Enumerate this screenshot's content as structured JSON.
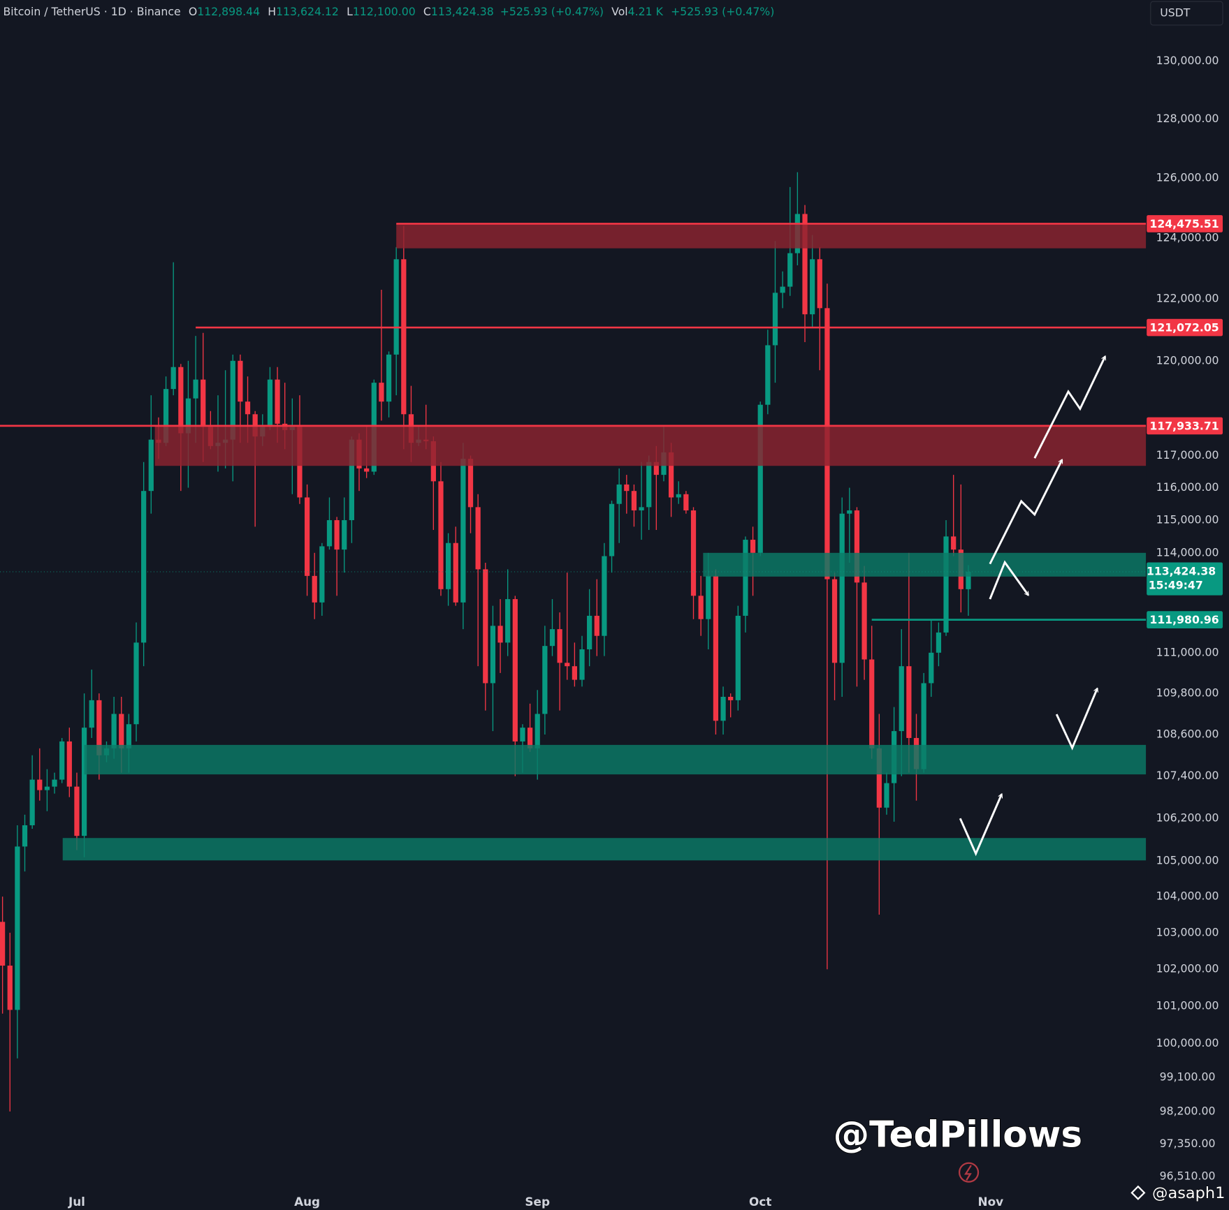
{
  "chart_data": {
    "type": "candlestick",
    "title": "Bitcoin / TetherUS · 1D · Binance",
    "ohlc_header": {
      "open_label": "O",
      "open": "112,898.44",
      "high_label": "H",
      "high": "113,624.12",
      "low_label": "L",
      "low": "112,100.00",
      "close_label": "C",
      "close": "113,424.38",
      "change": "+525.93 (+0.47%)",
      "volume_label": "Vol",
      "volume": "4.21 K",
      "volume_change": "+525.93 (+0.47%)"
    },
    "currency": "USDT",
    "up_color": "#089981",
    "down_color": "#f23645",
    "log_scale": true,
    "grid": false,
    "xlim": [
      -0.34,
      153.9
    ],
    "xticks": [
      {
        "value": 10,
        "label": "Jul"
      },
      {
        "value": 41,
        "label": "Aug"
      },
      {
        "value": 72,
        "label": "Sep"
      },
      {
        "value": 102,
        "label": "Oct"
      },
      {
        "value": 133,
        "label": "Nov"
      }
    ],
    "ylim": [
      96150,
      132140
    ],
    "yticks": [
      {
        "value": 130000,
        "label": "130,000.00"
      },
      {
        "value": 128000,
        "label": "128,000.00"
      },
      {
        "value": 126000,
        "label": "126,000.00"
      },
      {
        "value": 124000,
        "label": "124,000.00"
      },
      {
        "value": 122000,
        "label": "122,000.00"
      },
      {
        "value": 120000,
        "label": "120,000.00"
      },
      {
        "value": 117000,
        "label": "117,000.00"
      },
      {
        "value": 116000,
        "label": "116,000.00"
      },
      {
        "value": 115000,
        "label": "115,000.00"
      },
      {
        "value": 114000,
        "label": "114,000.00"
      },
      {
        "value": 111000,
        "label": "111,000.00"
      },
      {
        "value": 109800,
        "label": "109,800.00"
      },
      {
        "value": 108600,
        "label": "108,600.00"
      },
      {
        "value": 107400,
        "label": "107,400.00"
      },
      {
        "value": 106200,
        "label": "106,200.00"
      },
      {
        "value": 105000,
        "label": "105,000.00"
      },
      {
        "value": 104000,
        "label": "104,000.00"
      },
      {
        "value": 103000,
        "label": "103,000.00"
      },
      {
        "value": 102000,
        "label": "102,000.00"
      },
      {
        "value": 101000,
        "label": "101,000.00"
      },
      {
        "value": 100000,
        "label": "100,000.00"
      },
      {
        "value": 99100,
        "label": "99,100.00"
      },
      {
        "value": 98200,
        "label": "98,200.00"
      },
      {
        "value": 97350,
        "label": "97,350.00"
      },
      {
        "value": 96510,
        "label": "96,510.00"
      }
    ],
    "open": [
      103300,
      102100,
      100900,
      105400,
      106000,
      107300,
      107000,
      107100,
      107300,
      108400,
      107100,
      105700,
      108800,
      109600,
      108000,
      108200,
      109200,
      108200,
      108900,
      111300,
      115900,
      117500,
      117400,
      119100,
      119800,
      117700,
      118800,
      119400,
      117900,
      117300,
      117400,
      117500,
      120000,
      118700,
      118300,
      117600,
      117900,
      119400,
      118000,
      117800,
      117900,
      115700,
      113300,
      112500,
      114200,
      115000,
      114100,
      115000,
      117500,
      116600,
      116500,
      119300,
      118700,
      120200,
      123300,
      118300,
      117400,
      117500,
      117450,
      116200,
      112900,
      114300,
      112500,
      116900,
      115400,
      113500,
      110100,
      111800,
      111300,
      112600,
      108400,
      108800,
      108200,
      109200,
      111200,
      111700,
      110700,
      110600,
      110200,
      111100,
      112100,
      111500,
      113900,
      115500,
      116100,
      115900,
      115300,
      115400,
      116800,
      116400,
      117100,
      115700,
      115800,
      115300,
      112700,
      112000,
      113300,
      109000,
      109700,
      109600,
      112100,
      114400,
      114000,
      118600,
      120500,
      122200,
      122400,
      123500,
      124800,
      121500,
      123300,
      121700,
      113200,
      110700,
      115200,
      115300,
      113100,
      110800,
      108200,
      106500,
      107200,
      108700,
      110600,
      108500,
      107600,
      110100,
      111000,
      111600,
      114500,
      114100,
      112898.44
    ],
    "high": [
      104000,
      103000,
      106000,
      106300,
      108000,
      108200,
      107600,
      107500,
      108500,
      108800,
      107500,
      109800,
      110500,
      109800,
      108400,
      109700,
      109700,
      109200,
      111900,
      116800,
      118900,
      118200,
      119500,
      123200,
      119900,
      120000,
      120800,
      120900,
      118400,
      118900,
      119700,
      120200,
      120200,
      119500,
      118400,
      118300,
      119800,
      119800,
      119300,
      118800,
      118900,
      116100,
      114000,
      114300,
      115700,
      115100,
      115700,
      117600,
      117700,
      117900,
      119400,
      122300,
      120300,
      123700,
      124400,
      119200,
      117900,
      118600,
      117600,
      116800,
      114600,
      114800,
      117400,
      117000,
      115800,
      113700,
      112400,
      112600,
      113500,
      112700,
      108900,
      109500,
      109900,
      111800,
      112600,
      112200,
      113400,
      111300,
      111500,
      112900,
      113200,
      114300,
      115600,
      116600,
      116400,
      116100,
      116800,
      117000,
      117300,
      117900,
      117400,
      116200,
      115900,
      115400,
      113300,
      114000,
      113500,
      110000,
      109800,
      112400,
      114500,
      114800,
      118700,
      121000,
      123900,
      122900,
      125700,
      126200,
      125100,
      124100,
      123700,
      122500,
      113400,
      115700,
      116000,
      115400,
      113600,
      111800,
      109200,
      107500,
      109400,
      111700,
      114000,
      109200,
      110400,
      112000,
      111900,
      115000,
      116400,
      116100,
      113624.12
    ],
    "low": [
      100800,
      98200,
      99600,
      104700,
      105900,
      106700,
      106400,
      106900,
      107200,
      106800,
      105300,
      105100,
      108500,
      107300,
      107800,
      107900,
      107500,
      107500,
      108400,
      110600,
      115200,
      116900,
      117300,
      118900,
      115900,
      116000,
      117400,
      116800,
      117200,
      116500,
      116600,
      116200,
      117400,
      117400,
      114800,
      117300,
      117800,
      117400,
      117200,
      115800,
      115500,
      112700,
      112000,
      112100,
      114100,
      112700,
      113400,
      114300,
      115900,
      116300,
      116400,
      118100,
      118200,
      118900,
      117200,
      116800,
      117300,
      117200,
      114700,
      112700,
      112400,
      112400,
      111700,
      114600,
      110600,
      109300,
      108700,
      110400,
      110900,
      107400,
      107500,
      108100,
      107300,
      108600,
      110900,
      109300,
      110200,
      110000,
      110000,
      110600,
      110900,
      110900,
      113400,
      114300,
      115200,
      114800,
      114400,
      114700,
      114700,
      116200,
      115100,
      115500,
      115200,
      112000,
      111500,
      111100,
      108600,
      108600,
      109100,
      109300,
      111600,
      112700,
      113900,
      118300,
      119300,
      121700,
      122100,
      123100,
      120600,
      121100,
      119700,
      102000,
      109600,
      109700,
      113700,
      110000,
      110200,
      107900,
      103500,
      106300,
      106100,
      107400,
      107500,
      106700,
      107500,
      109700,
      110600,
      111500,
      113900,
      112200,
      112100
    ],
    "close": [
      102100,
      100900,
      105400,
      106000,
      107300,
      107000,
      107100,
      107300,
      108400,
      107100,
      105700,
      108800,
      109600,
      108000,
      108200,
      109200,
      108200,
      108900,
      111300,
      115900,
      117500,
      117400,
      119100,
      119800,
      117700,
      118800,
      119400,
      117900,
      117300,
      117400,
      117500,
      120000,
      118700,
      118300,
      117600,
      117900,
      119400,
      118000,
      117800,
      117900,
      115700,
      113300,
      112500,
      114200,
      115000,
      114100,
      115000,
      117500,
      116600,
      116500,
      119300,
      118700,
      120200,
      123300,
      118300,
      117400,
      117500,
      117450,
      116200,
      112900,
      114300,
      112500,
      116900,
      115400,
      113500,
      110100,
      111800,
      111300,
      112600,
      108400,
      108800,
      108200,
      109200,
      111200,
      111700,
      110700,
      110600,
      110200,
      111100,
      112100,
      111500,
      113900,
      115500,
      116100,
      115900,
      115300,
      115400,
      116800,
      116400,
      117100,
      115700,
      115800,
      115300,
      112700,
      112000,
      113300,
      109000,
      109700,
      109600,
      112100,
      114400,
      114000,
      118600,
      120500,
      122200,
      122400,
      123500,
      124800,
      121500,
      123300,
      121700,
      113200,
      110700,
      115200,
      115300,
      113100,
      110800,
      108200,
      106500,
      107200,
      108700,
      110600,
      108500,
      107600,
      110100,
      111000,
      111600,
      114500,
      114100,
      112900,
      113424.38
    ],
    "zones": [
      {
        "top": 124470,
        "bottom": 123660,
        "start": 53,
        "color": "#8c2330"
      },
      {
        "top": 117930,
        "bottom": 116680,
        "start": 20.5,
        "color": "#8c2330"
      },
      {
        "top": 114000,
        "bottom": 113280,
        "start": 94.3,
        "color": "#0b7a67"
      },
      {
        "top": 108300,
        "bottom": 107450,
        "start": 11,
        "color": "#0b7a67"
      },
      {
        "top": 105640,
        "bottom": 105010,
        "start": 8.1,
        "color": "#0b7a67"
      }
    ],
    "levels": [
      {
        "value": 124475.51,
        "label": "124,475.51",
        "color": "#f23645",
        "start": 53
      },
      {
        "value": 121072.05,
        "label": "121,072.05",
        "color": "#f23645",
        "start": 26
      },
      {
        "value": 117933.71,
        "label": "117,933.71",
        "color": "#f23645"
      },
      {
        "value": 111980.96,
        "label": "111,980.96",
        "color": "#089981",
        "start": 117
      }
    ],
    "last_price": {
      "label": "113,424.38",
      "countdown": "15:49:47",
      "color": "#089981"
    },
    "watermark": "@TedPillows",
    "credit": "@asaph1"
  }
}
